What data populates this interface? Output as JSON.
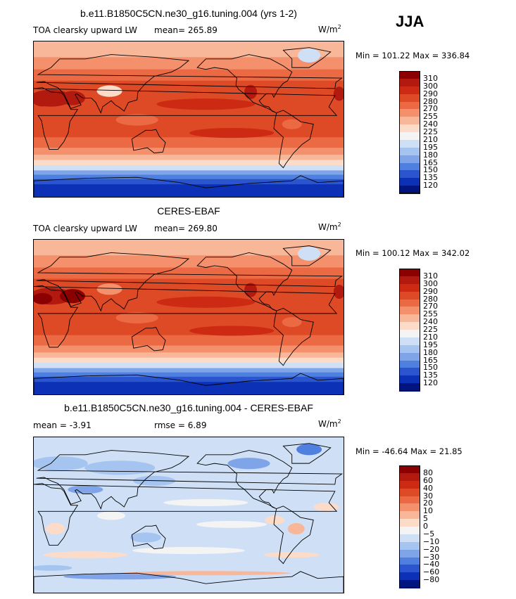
{
  "season": "JJA",
  "panels": [
    {
      "title": "b.e11.B1850C5CN.ne30_g16.tuning.004 (yrs 1-2)",
      "left_label": "TOA clearsky upward LW",
      "mean_label": "mean= 265.89",
      "units_base": "W/m",
      "units_exp": "2",
      "minmax": "Min = 101.22 Max = 336.84"
    },
    {
      "title": "CERES-EBAF",
      "left_label": "TOA clearsky upward LW",
      "mean_label": "mean= 269.80",
      "units_base": "W/m",
      "units_exp": "2",
      "minmax": "Min = 100.12 Max = 342.02"
    },
    {
      "title": "b.e11.B1850C5CN.ne30_g16.tuning.004 - CERES-EBAF",
      "left_label": "mean =   -3.91",
      "mean_label": "rmse =    6.89",
      "units_base": "W/m",
      "units_exp": "2",
      "minmax": "Min = -46.64 Max =  21.85"
    }
  ],
  "chart_data": [
    {
      "type": "heatmap",
      "title": "b.e11.B1850C5CN.ne30_g16.tuning.004 (yrs 1-2)",
      "variable": "TOA clearsky upward LW",
      "units": "W/m2",
      "mean": 265.89,
      "min": 101.22,
      "max": 336.84,
      "colorbar_levels": [
        310,
        300,
        290,
        280,
        270,
        255,
        240,
        225,
        210,
        195,
        180,
        165,
        150,
        135,
        120
      ],
      "colors": [
        "#8b0000",
        "#b21a0f",
        "#cc2a12",
        "#de4a25",
        "#ec6a43",
        "#f4906c",
        "#f9b79a",
        "#fcdcc8",
        "#f4f4f4",
        "#cfe0f6",
        "#a6c4f0",
        "#7fa4e8",
        "#4f7fdf",
        "#2a55cf",
        "#0c30b6",
        "#00157f"
      ]
    },
    {
      "type": "heatmap",
      "title": "CERES-EBAF",
      "variable": "TOA clearsky upward LW",
      "units": "W/m2",
      "mean": 269.8,
      "min": 100.12,
      "max": 342.02,
      "colorbar_levels": [
        310,
        300,
        290,
        280,
        270,
        255,
        240,
        225,
        210,
        195,
        180,
        165,
        150,
        135,
        120
      ],
      "colors": [
        "#8b0000",
        "#b21a0f",
        "#cc2a12",
        "#de4a25",
        "#ec6a43",
        "#f4906c",
        "#f9b79a",
        "#fcdcc8",
        "#f4f4f4",
        "#cfe0f6",
        "#a6c4f0",
        "#7fa4e8",
        "#4f7fdf",
        "#2a55cf",
        "#0c30b6",
        "#00157f"
      ]
    },
    {
      "type": "heatmap",
      "title": "b.e11.B1850C5CN.ne30_g16.tuning.004 - CERES-EBAF",
      "units": "W/m2",
      "mean": -3.91,
      "rmse": 6.89,
      "min": -46.64,
      "max": 21.85,
      "colorbar_levels": [
        80,
        60,
        40,
        30,
        20,
        10,
        5,
        0,
        -5,
        -10,
        -20,
        -30,
        -40,
        -60,
        -80
      ],
      "colors": [
        "#8b0000",
        "#b21a0f",
        "#cc2a12",
        "#de4a25",
        "#ec6a43",
        "#f4906c",
        "#f9b79a",
        "#fcdcc8",
        "#f4f4f4",
        "#cfe0f6",
        "#a6c4f0",
        "#7fa4e8",
        "#4f7fdf",
        "#2a55cf",
        "#0c30b6",
        "#00157f"
      ]
    }
  ]
}
